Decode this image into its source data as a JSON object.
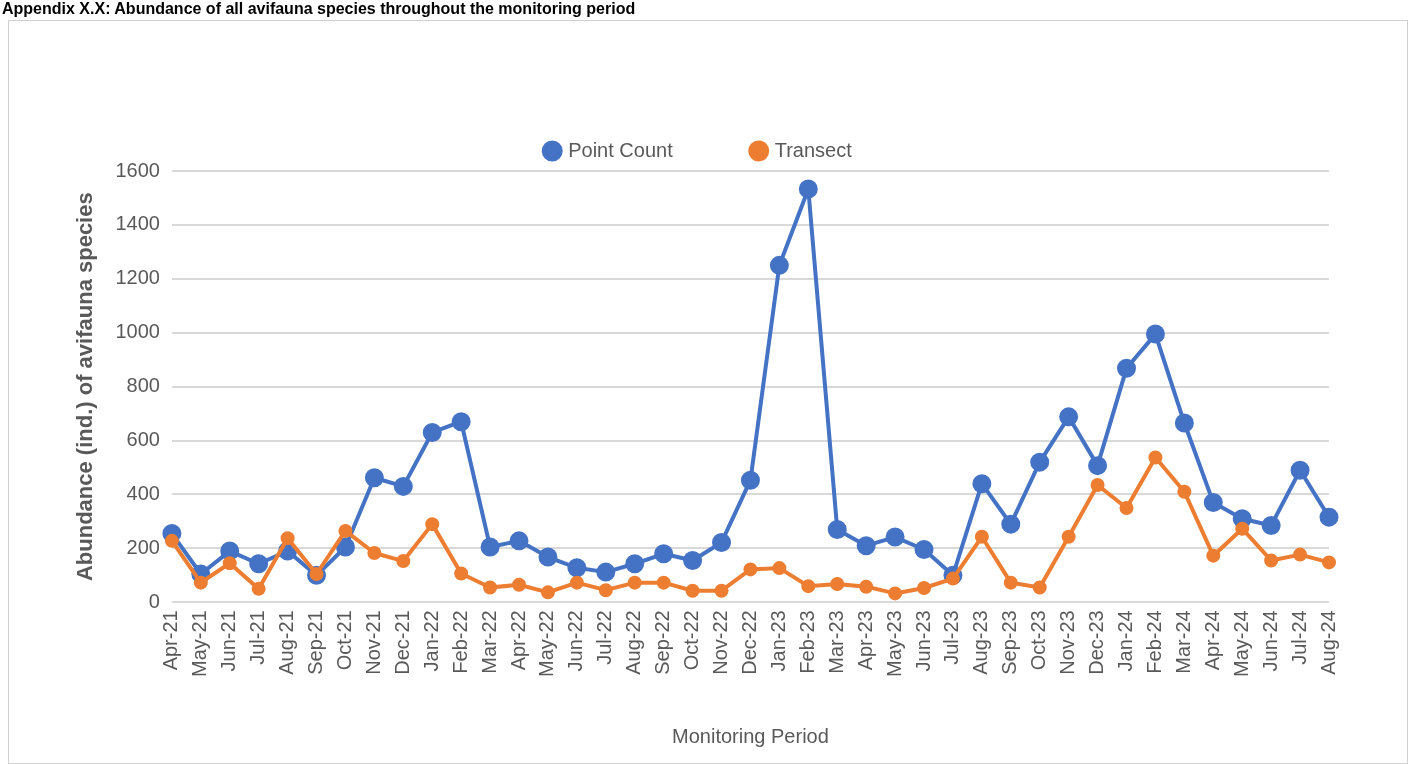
{
  "chart_data": {
    "type": "line",
    "title": "Appendix X.X: Abundance of all avifauna species throughout the monitoring period",
    "xlabel": "Monitoring Period",
    "ylabel": "Abundance (ind.) of avifauna species",
    "categories": [
      "Apr-21",
      "May-21",
      "Jun-21",
      "Jul-21",
      "Aug-21",
      "Sep-21",
      "Oct-21",
      "Nov-21",
      "Dec-21",
      "Jan-22",
      "Feb-22",
      "Mar-22",
      "Apr-22",
      "May-22",
      "Jun-22",
      "Jul-22",
      "Aug-22",
      "Sep-22",
      "Oct-22",
      "Nov-22",
      "Dec-22",
      "Jan-23",
      "Feb-23",
      "Mar-23",
      "Apr-23",
      "May-23",
      "Jun-23",
      "Jul-23",
      "Aug-23",
      "Sep-23",
      "Oct-23",
      "Nov-23",
      "Dec-23",
      "Jan-24",
      "Feb-24",
      "Mar-24",
      "Apr-24",
      "May-24",
      "Jun-24",
      "Jul-24",
      "Aug-24"
    ],
    "series": [
      {
        "name": "Point Count",
        "color": "#4472c4",
        "values": [
          255,
          105,
          190,
          143,
          190,
          100,
          205,
          462,
          430,
          630,
          670,
          205,
          228,
          168,
          128,
          112,
          143,
          180,
          155,
          222,
          453,
          1250,
          1533,
          270,
          210,
          242,
          196,
          100,
          440,
          290,
          520,
          688,
          507,
          868,
          995,
          665,
          370,
          310,
          285,
          490,
          316
        ]
      },
      {
        "name": "Transect",
        "color": "#ed7d31",
        "values": [
          228,
          73,
          145,
          50,
          238,
          105,
          265,
          183,
          153,
          290,
          107,
          55,
          65,
          37,
          73,
          45,
          73,
          73,
          43,
          43,
          122,
          127,
          60,
          68,
          58,
          33,
          53,
          88,
          243,
          73,
          55,
          243,
          435,
          350,
          537,
          410,
          173,
          273,
          155,
          177,
          148
        ]
      }
    ],
    "ylim": [
      0,
      1600
    ],
    "yticks": [
      0,
      200,
      400,
      600,
      800,
      1000,
      1200,
      1400,
      1600
    ],
    "grid": "y",
    "legend": "top",
    "marker": "circle",
    "line_style": "solid"
  }
}
